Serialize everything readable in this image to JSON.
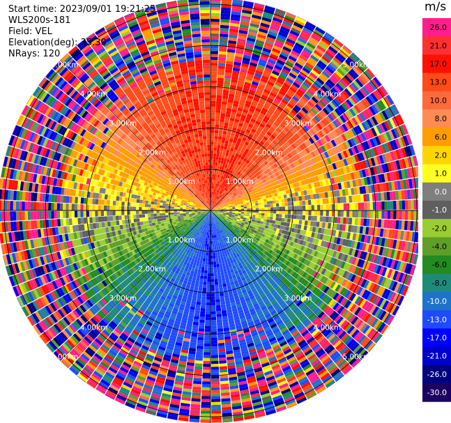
{
  "header": {
    "start_time": "Start time: 2023/09/01 19:21:25",
    "instrument": "WLS200s-181",
    "field": "Field: VEL",
    "elevation": "Elevation(deg): 35.30",
    "nrays": "NRays: 120"
  },
  "colorbar": {
    "unit": "m/s",
    "ticks": [
      "26.0",
      "21.0",
      "17.0",
      "13.0",
      "10.0",
      "8.0",
      "6.0",
      "2.0",
      "1.0",
      "0.0",
      "-1.0",
      "-2.0",
      "-4.0",
      "-6.0",
      "-8.0",
      "-10.0",
      "-13.0",
      "-17.0",
      "-21.0",
      "-26.0",
      "-30.0"
    ],
    "colors": [
      "#ff1e8c",
      "#ff3030",
      "#ff1000",
      "#ff4a1a",
      "#ff6a3d",
      "#ff8c55",
      "#ff9c00",
      "#ffd500",
      "#ffff22",
      "#7f7f7f",
      "#5f5f5f",
      "#9acd32",
      "#5f9e28",
      "#228b22",
      "#1f8a7a",
      "#1e73c8",
      "#1e4bff",
      "#0000ff",
      "#0000cc",
      "#000080",
      "#1a0060"
    ]
  },
  "chart_data": {
    "type": "heatmap",
    "title": "",
    "field": "VEL",
    "units": "m/s",
    "nrays": 120,
    "elevation_deg": 35.3,
    "range_rings_km": [
      1,
      2,
      3,
      4,
      5
    ],
    "range_ring_labels": [
      "1.00km",
      "2.00km",
      "3.00km",
      "4.00km",
      "5.00km"
    ],
    "color_scale_min": -30,
    "color_scale_max": 30,
    "valid_range_km": 3.6,
    "approx_velocity_by_azimuth_deg": [
      {
        "azimuth": 0,
        "velocity": 13
      },
      {
        "azimuth": 30,
        "velocity": 13
      },
      {
        "azimuth": 60,
        "velocity": 8
      },
      {
        "azimuth": 80,
        "velocity": 1
      },
      {
        "azimuth": 90,
        "velocity": 0
      },
      {
        "azimuth": 110,
        "velocity": -2
      },
      {
        "azimuth": 140,
        "velocity": -10
      },
      {
        "azimuth": 180,
        "velocity": -17
      },
      {
        "azimuth": 220,
        "velocity": -10
      },
      {
        "azimuth": 250,
        "velocity": -4
      },
      {
        "azimuth": 270,
        "velocity": 0
      },
      {
        "azimuth": 290,
        "velocity": 2
      },
      {
        "azimuth": 320,
        "velocity": 10
      },
      {
        "azimuth": 350,
        "velocity": 13
      }
    ]
  }
}
